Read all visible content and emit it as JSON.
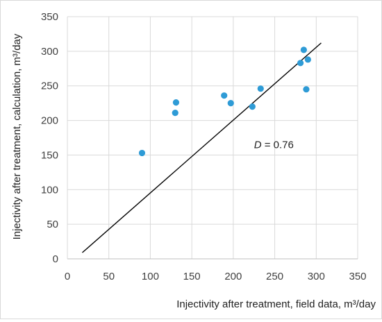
{
  "chart_data": {
    "type": "scatter",
    "title": "",
    "xlabel": "Injectivity after treatment, field data, m³/day",
    "ylabel": "Injectivity after treatment, calculation, m³/day",
    "xlim": [
      0,
      350
    ],
    "ylim": [
      0,
      350
    ],
    "xticks": [
      0,
      50,
      100,
      150,
      200,
      250,
      300,
      350
    ],
    "yticks": [
      0,
      50,
      100,
      150,
      200,
      250,
      300,
      350
    ],
    "grid": true,
    "legend": "none",
    "series": [
      {
        "color": "#2e9bd6",
        "points": [
          {
            "x": 90,
            "y": 153
          },
          {
            "x": 130,
            "y": 211
          },
          {
            "x": 131,
            "y": 226
          },
          {
            "x": 189,
            "y": 236
          },
          {
            "x": 197,
            "y": 225
          },
          {
            "x": 223,
            "y": 220
          },
          {
            "x": 233,
            "y": 246
          },
          {
            "x": 281,
            "y": 283
          },
          {
            "x": 285,
            "y": 302
          },
          {
            "x": 288,
            "y": 245
          },
          {
            "x": 290,
            "y": 288
          }
        ]
      }
    ],
    "trendline": {
      "color": "#000000",
      "from": {
        "x": 18,
        "y": 9
      },
      "to": {
        "x": 306,
        "y": 312
      }
    },
    "annotation": {
      "var": "D",
      "text": " = 0.76",
      "x": 225,
      "y": 160
    }
  }
}
